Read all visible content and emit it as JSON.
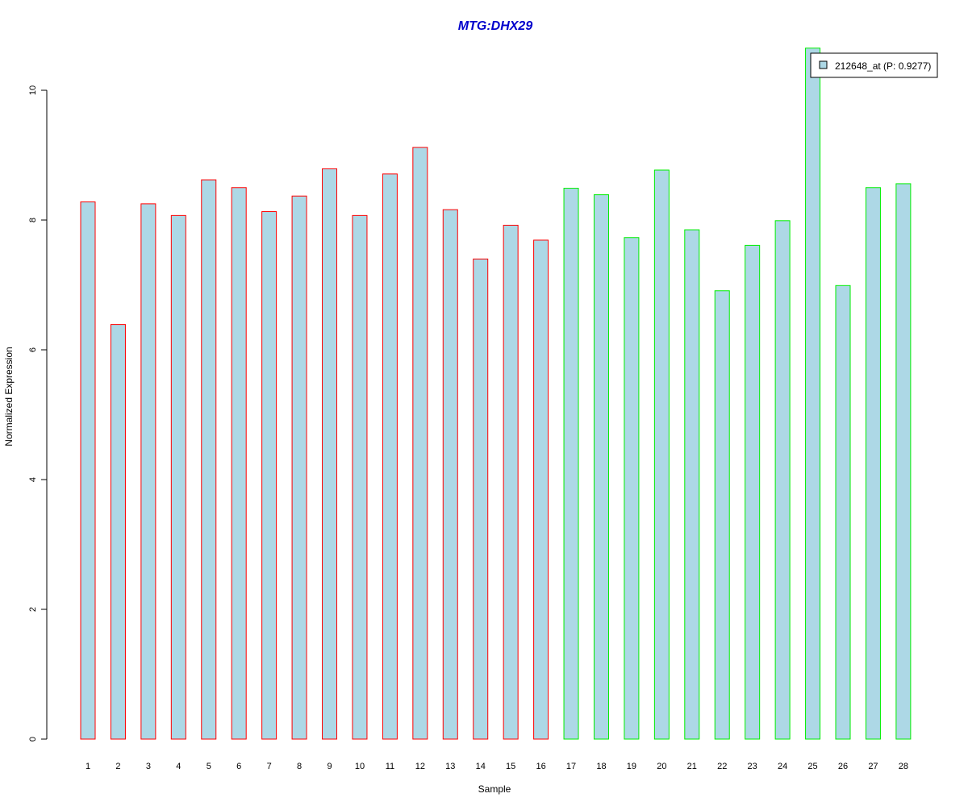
{
  "chart_data": {
    "type": "bar",
    "title": "MTG:DHX29",
    "xlabel": "Sample",
    "ylabel": "Normalized Expression",
    "ylim": [
      0,
      10.65
    ],
    "yticks": [
      0,
      2,
      4,
      6,
      8,
      10
    ],
    "grid": false,
    "legend_position": "top-right",
    "bar_fill": "#add8e6",
    "categories": [
      "1",
      "2",
      "3",
      "4",
      "5",
      "6",
      "7",
      "8",
      "9",
      "10",
      "11",
      "12",
      "13",
      "14",
      "15",
      "16",
      "17",
      "18",
      "19",
      "20",
      "21",
      "22",
      "23",
      "24",
      "25",
      "26",
      "27",
      "28"
    ],
    "series": [
      {
        "name": "212648_at (P: 0.9277)",
        "values": [
          8.28,
          6.39,
          8.25,
          8.07,
          8.62,
          8.5,
          8.13,
          8.37,
          8.79,
          8.07,
          8.71,
          9.12,
          8.16,
          7.4,
          7.92,
          7.69,
          8.49,
          8.39,
          7.73,
          8.77,
          7.85,
          6.91,
          7.61,
          7.99,
          10.65,
          6.99,
          8.5,
          8.56
        ],
        "outline_colors": [
          "#ff0000",
          "#ff0000",
          "#ff0000",
          "#ff0000",
          "#ff0000",
          "#ff0000",
          "#ff0000",
          "#ff0000",
          "#ff0000",
          "#ff0000",
          "#ff0000",
          "#ff0000",
          "#ff0000",
          "#ff0000",
          "#ff0000",
          "#ff0000",
          "#00ee00",
          "#00ee00",
          "#00ee00",
          "#00ee00",
          "#00ee00",
          "#00ee00",
          "#00ee00",
          "#00ee00",
          "#00ee00",
          "#00ee00",
          "#00ee00",
          "#00ee00"
        ]
      }
    ]
  }
}
